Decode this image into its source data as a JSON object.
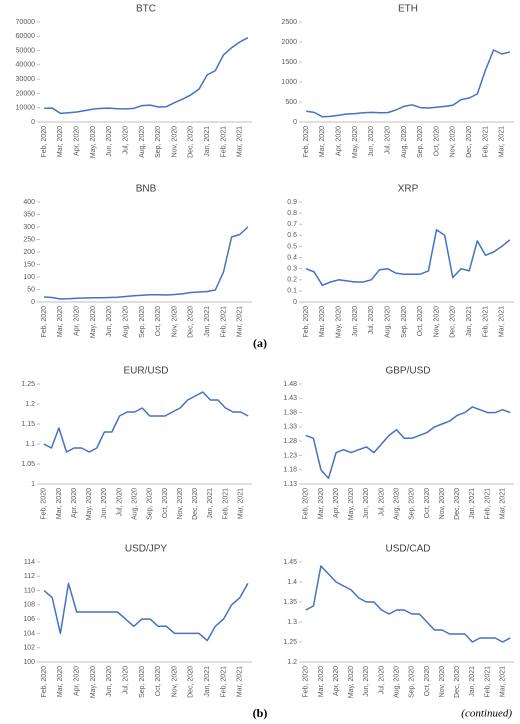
{
  "chart_data": [
    {
      "type": "line",
      "title": "BTC",
      "color": "#4472c4",
      "categories": [
        "Feb, 2020",
        null,
        "Mar, 2020",
        null,
        "Apr, 2020",
        null,
        "May, 2020",
        null,
        "Jun, 2020",
        null,
        "Jul, 2020",
        null,
        "Aug, 2020",
        null,
        "Sep, 2020",
        null,
        "Nov, 2020",
        null,
        "Dec, 2020",
        null,
        "Jan, 2021",
        null,
        "Feb, 2021",
        null,
        "Mar, 2021",
        null
      ],
      "values": [
        9500,
        9800,
        6000,
        6500,
        7000,
        8000,
        9000,
        9500,
        9700,
        9300,
        9200,
        9500,
        11500,
        11800,
        10500,
        10700,
        13500,
        16000,
        19000,
        23000,
        33000,
        36000,
        47000,
        52000,
        56000,
        59000
      ],
      "ylim": [
        0,
        70000
      ],
      "yticks": [
        0,
        10000,
        20000,
        30000,
        40000,
        50000,
        60000,
        70000
      ]
    },
    {
      "type": "line",
      "title": "ETH",
      "color": "#4472c4",
      "categories": [
        "Feb, 2020",
        null,
        "Mar, 2020",
        null,
        "Apr, 2020",
        null,
        "May, 2020",
        null,
        "Jun, 2020",
        null,
        "Jul, 2020",
        null,
        "Aug, 2020",
        null,
        "Sep, 2020",
        null,
        "Oct, 2020",
        null,
        "Nov, 2020",
        null,
        "Dec, 2020",
        null,
        "Feb, 2021",
        null,
        "Mar, 2021",
        null
      ],
      "values": [
        270,
        240,
        130,
        140,
        170,
        200,
        210,
        230,
        240,
        230,
        235,
        300,
        390,
        430,
        360,
        350,
        370,
        390,
        420,
        560,
        600,
        700,
        1300,
        1800,
        1700,
        1750
      ],
      "ylim": [
        0,
        2500
      ],
      "yticks": [
        0,
        500,
        1000,
        1500,
        2000,
        2500
      ]
    },
    {
      "type": "line",
      "title": "BNB",
      "color": "#4472c4",
      "categories": [
        "Feb, 2020",
        null,
        "Mar, 2020",
        null,
        "Apr, 2020",
        null,
        "May, 2020",
        null,
        "Jun, 2020",
        null,
        "Aug, 2020",
        null,
        "Sep, 2020",
        null,
        "Oct, 2020",
        null,
        "Nov, 2020",
        null,
        "Dec, 2020",
        null,
        "Jan, 2021",
        null,
        "Feb, 2021",
        null,
        "Mar, 2021",
        null
      ],
      "values": [
        20,
        18,
        12,
        13,
        15,
        16,
        17,
        17,
        18,
        19,
        22,
        25,
        27,
        29,
        29,
        28,
        30,
        33,
        38,
        40,
        42,
        48,
        120,
        260,
        270,
        300
      ],
      "ylim": [
        0,
        400
      ],
      "yticks": [
        0,
        50,
        100,
        150,
        200,
        250,
        300,
        350,
        400
      ]
    },
    {
      "type": "line",
      "title": "XRP",
      "color": "#4472c4",
      "categories": [
        "Feb, 2020",
        null,
        "Mar, 2020",
        null,
        "May, 2020",
        null,
        "Jun, 2020",
        null,
        "Jul, 2020",
        null,
        "Aug, 2020",
        null,
        "Sep, 2020",
        null,
        "Oct, 2020",
        null,
        "Nov, 2020",
        null,
        "Dec, 2020",
        null,
        "Jan, 2021",
        null,
        "Feb, 2021",
        null,
        "Mar, 2021",
        null
      ],
      "values": [
        0.3,
        0.27,
        0.15,
        0.18,
        0.2,
        0.19,
        0.18,
        0.18,
        0.2,
        0.29,
        0.3,
        0.26,
        0.25,
        0.25,
        0.25,
        0.28,
        0.65,
        0.6,
        0.22,
        0.3,
        0.28,
        0.55,
        0.42,
        0.45,
        0.5,
        0.56
      ],
      "ylim": [
        0,
        0.9
      ],
      "yticks": [
        0,
        0.1,
        0.2,
        0.3,
        0.4,
        0.5,
        0.6,
        0.7,
        0.8,
        0.9
      ]
    },
    {
      "type": "line",
      "title": "EUR/USD",
      "color": "#4472c4",
      "categories": [
        "Feb, 2020",
        null,
        "Mar, 2020",
        null,
        "Apr, 2020",
        null,
        "May, 2020",
        null,
        "Jun, 2020",
        null,
        "Jul, 2020",
        null,
        "Aug, 2020",
        null,
        "Sep, 2020",
        null,
        "Oct, 2020",
        null,
        "Nov, 2020",
        null,
        "Dec, 2020",
        null,
        "Jan, 2021",
        null,
        "Feb, 2021",
        null,
        "Mar, 2021",
        null
      ],
      "values": [
        1.1,
        1.09,
        1.14,
        1.08,
        1.09,
        1.09,
        1.08,
        1.09,
        1.13,
        1.13,
        1.17,
        1.18,
        1.18,
        1.19,
        1.17,
        1.17,
        1.17,
        1.18,
        1.19,
        1.21,
        1.22,
        1.23,
        1.21,
        1.21,
        1.19,
        1.18,
        1.18,
        1.17
      ],
      "ylim": [
        1,
        1.25
      ],
      "yticks": [
        1,
        1.05,
        1.1,
        1.15,
        1.2,
        1.25
      ]
    },
    {
      "type": "line",
      "title": "GBP/USD",
      "color": "#4472c4",
      "categories": [
        "Feb, 2020",
        null,
        "Mar, 2020",
        null,
        "Apr, 2020",
        null,
        "May, 2020",
        null,
        "Jun, 2020",
        null,
        "Jul, 2020",
        null,
        "Aug, 2020",
        null,
        "Sep, 2020",
        null,
        "Oct, 2020",
        null,
        "Nov, 2020",
        null,
        "Dec, 2020",
        null,
        "Jan, 2021",
        null,
        "Feb, 2021",
        null,
        "Mar, 2021",
        null
      ],
      "values": [
        1.3,
        1.29,
        1.18,
        1.15,
        1.24,
        1.25,
        1.24,
        1.25,
        1.26,
        1.24,
        1.27,
        1.3,
        1.32,
        1.29,
        1.29,
        1.3,
        1.31,
        1.33,
        1.34,
        1.35,
        1.37,
        1.38,
        1.4,
        1.39,
        1.38,
        1.38,
        1.39,
        1.38
      ],
      "ylim": [
        1.13,
        1.48
      ],
      "yticks": [
        1.13,
        1.18,
        1.23,
        1.28,
        1.33,
        1.38,
        1.43,
        1.48
      ]
    },
    {
      "type": "line",
      "title": "USD/JPY",
      "color": "#4472c4",
      "categories": [
        "Feb, 2020",
        null,
        "Mar, 2020",
        null,
        "Apr, 2020",
        null,
        "May, 2020",
        null,
        "Jun, 2020",
        null,
        "Jul, 2020",
        null,
        "Sep, 2020",
        null,
        "Oct, 2020",
        null,
        "Nov, 2020",
        null,
        "Dec, 2020",
        null,
        "Jan, 2021",
        null,
        "Feb, 2021",
        null,
        "Mar, 2021",
        null
      ],
      "values": [
        110,
        109,
        104,
        111,
        107,
        107,
        107,
        107,
        107,
        107,
        106,
        105,
        106,
        106,
        105,
        105,
        104,
        104,
        104,
        104,
        103,
        105,
        106,
        108,
        109,
        111
      ],
      "ylim": [
        100,
        114
      ],
      "yticks": [
        100,
        102,
        104,
        106,
        108,
        110,
        112,
        114
      ]
    },
    {
      "type": "line",
      "title": "USD/CAD",
      "color": "#4472c4",
      "categories": [
        "Feb, 2020",
        null,
        "Mar, 2020",
        null,
        "Apr, 2020",
        null,
        "May, 2020",
        null,
        "Jun, 2020",
        null,
        "Jul, 2020",
        null,
        "Aug, 2020",
        null,
        "Sep, 2020",
        null,
        "Oct, 2020",
        null,
        "Nov, 2020",
        null,
        "Dec, 2020",
        null,
        "Jan, 2021",
        null,
        "Feb, 2021",
        null,
        "Mar, 2021",
        null
      ],
      "values": [
        1.33,
        1.34,
        1.44,
        1.42,
        1.4,
        1.39,
        1.38,
        1.36,
        1.35,
        1.35,
        1.33,
        1.32,
        1.33,
        1.33,
        1.32,
        1.32,
        1.3,
        1.28,
        1.28,
        1.27,
        1.27,
        1.27,
        1.25,
        1.26,
        1.26,
        1.26,
        1.25,
        1.26
      ],
      "ylim": [
        1.2,
        1.45
      ],
      "yticks": [
        1.2,
        1.25,
        1.3,
        1.35,
        1.4,
        1.45
      ]
    }
  ],
  "panel_labels": {
    "a": "(a)",
    "b": "(b)",
    "continued": "(continued)"
  }
}
